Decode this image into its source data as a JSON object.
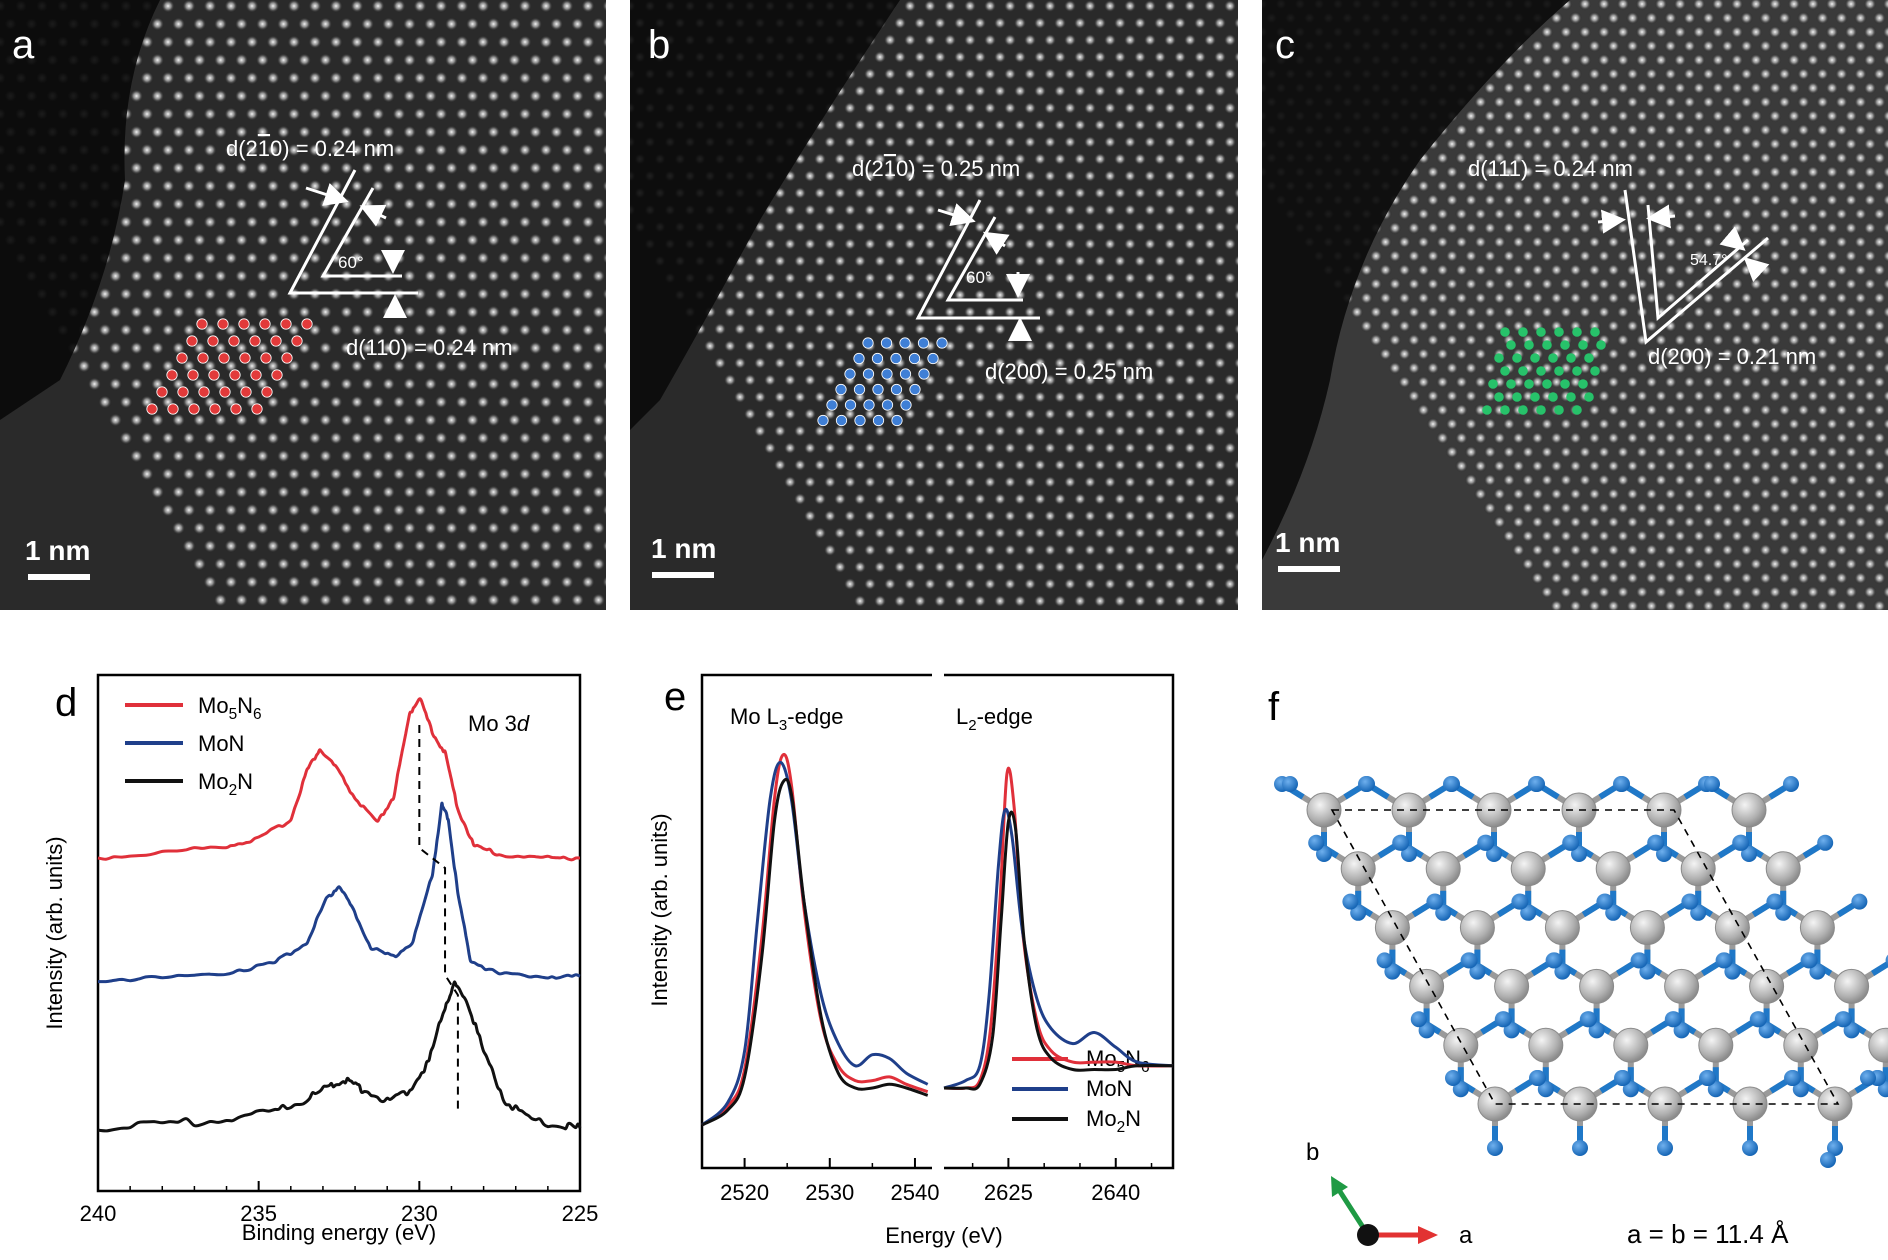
{
  "panels": {
    "a": {
      "letter": "a",
      "scale_label": "1 nm",
      "annotations": [
        {
          "prefix": "d(2",
          "bar": "1",
          "suffix": "0) = 0.24 nm"
        },
        {
          "text": "d(110) = 0.24 nm"
        }
      ],
      "angle": "60°",
      "dot_color": "#e23a3a"
    },
    "b": {
      "letter": "b",
      "scale_label": "1 nm",
      "annotations": [
        {
          "prefix": "d(2",
          "bar": "1",
          "suffix": "0) = 0.25 nm"
        },
        {
          "text": "d(200) = 0.25 nm"
        }
      ],
      "angle": "60°",
      "dot_color": "#3f7fd6"
    },
    "c": {
      "letter": "c",
      "scale_label": "1 nm",
      "annotations": [
        {
          "text": "d(111) = 0.24 nm"
        },
        {
          "text": "d(200) = 0.21 nm"
        }
      ],
      "angle": "54.7°",
      "dot_color": "#27c26a"
    },
    "f": {
      "letter": "f",
      "lattice_label": "a = b = 11.4 Å",
      "axis_a": "a",
      "axis_b": "b",
      "mo_color": "#b3b3b3",
      "n_color": "#1f78c8"
    }
  },
  "chart_data": [
    {
      "type": "line",
      "panel": "d",
      "title": "",
      "annotation": "Mo 3d",
      "xlabel": "Binding energy (eV)",
      "ylabel": "Intensity (arb. units)",
      "xlim": [
        240,
        225
      ],
      "x_reversed": true,
      "x_ticks": [
        240,
        235,
        230,
        225
      ],
      "legend_position": "top-left",
      "series": [
        {
          "name": "Mo5N6",
          "label_parts": [
            "Mo",
            "5",
            "N",
            "6"
          ],
          "color": "#e0303a",
          "offset": 2.0,
          "x": [
            240,
            238,
            236,
            235,
            234,
            233.5,
            233.1,
            232.6,
            232,
            231.3,
            230.8,
            230.3,
            230,
            229.6,
            229.2,
            228.8,
            228.3,
            227.5,
            226,
            225
          ],
          "y": [
            0.0,
            0.03,
            0.07,
            0.11,
            0.22,
            0.5,
            0.62,
            0.52,
            0.34,
            0.2,
            0.35,
            0.82,
            0.92,
            0.72,
            0.6,
            0.28,
            0.07,
            0.02,
            0.0,
            0.0
          ]
        },
        {
          "name": "MoN",
          "label_parts": [
            "MoN"
          ],
          "color": "#1f3f8a",
          "offset": 1.0,
          "x": [
            240,
            238,
            236,
            234.5,
            233.5,
            232.9,
            232.5,
            232.1,
            231.5,
            230.8,
            230.2,
            229.6,
            229.3,
            229.1,
            228.8,
            228.4,
            227.5,
            226,
            225
          ],
          "y": [
            0.0,
            0.01,
            0.04,
            0.09,
            0.2,
            0.42,
            0.5,
            0.38,
            0.17,
            0.12,
            0.2,
            0.55,
            0.92,
            0.85,
            0.45,
            0.1,
            0.03,
            0.02,
            0.02
          ]
        },
        {
          "name": "Mo2N",
          "label_parts": [
            "Mo",
            "2",
            "N"
          ],
          "color": "#111111",
          "offset": 0.0,
          "x": [
            240,
            238,
            236,
            234.5,
            233.5,
            232.8,
            232.3,
            231.8,
            231,
            230.3,
            229.7,
            229.2,
            228.9,
            228.5,
            228,
            227.3,
            226.5,
            225.5,
            225
          ],
          "y": [
            0.0,
            0.02,
            0.05,
            0.09,
            0.16,
            0.23,
            0.27,
            0.22,
            0.15,
            0.21,
            0.37,
            0.68,
            0.8,
            0.7,
            0.42,
            0.14,
            0.05,
            0.01,
            0.0
          ]
        }
      ],
      "shift_markers": [
        230.0,
        229.2,
        228.8
      ]
    },
    {
      "type": "line",
      "panel": "e",
      "title": "",
      "xlabel": "Energy (eV)",
      "ylabel": "Intensity (arb. units)",
      "subpanels": [
        {
          "label_parts": [
            "Mo L",
            "3",
            "-edge"
          ],
          "xlim": [
            2515,
            2542
          ],
          "x_ticks": [
            2520,
            2530,
            2540
          ]
        },
        {
          "label_parts": [
            "L",
            "2",
            "-edge"
          ],
          "xlim": [
            2616,
            2648
          ],
          "x_ticks": [
            2625,
            2640
          ]
        }
      ],
      "legend_position": "bottom-right",
      "series": [
        {
          "name": "Mo5N6",
          "label_parts": [
            "Mo",
            "5",
            "N",
            "6"
          ],
          "color": "#e0303a",
          "L3": {
            "x": [
              2515,
              2518,
              2520,
              2522,
              2523.5,
              2524.5,
              2525.5,
              2527,
              2529,
              2531,
              2533,
              2535,
              2537,
              2539,
              2541.5
            ],
            "y": [
              0.0,
              0.05,
              0.15,
              0.5,
              0.88,
              1.0,
              0.92,
              0.58,
              0.28,
              0.16,
              0.12,
              0.12,
              0.13,
              0.11,
              0.09
            ]
          },
          "L2": {
            "x": [
              2616,
              2619,
              2621,
              2622.5,
              2623.8,
              2624.8,
              2625.8,
              2627,
              2629,
              2631,
              2634,
              2637,
              2640,
              2643,
              2648
            ],
            "y": [
              0.1,
              0.1,
              0.12,
              0.26,
              0.6,
              0.95,
              0.86,
              0.52,
              0.28,
              0.2,
              0.17,
              0.17,
              0.17,
              0.16,
              0.16
            ]
          }
        },
        {
          "name": "MoN",
          "label_parts": [
            "MoN"
          ],
          "color": "#1f3f8a",
          "L3": {
            "x": [
              2515,
              2518,
              2520,
              2521.5,
              2523,
              2524.2,
              2525.5,
              2527,
              2529,
              2531,
              2533,
              2535,
              2537,
              2539,
              2541.5
            ],
            "y": [
              0.0,
              0.06,
              0.2,
              0.55,
              0.88,
              0.98,
              0.88,
              0.6,
              0.35,
              0.22,
              0.16,
              0.19,
              0.18,
              0.14,
              0.11
            ]
          },
          "L2": {
            "x": [
              2616,
              2619,
              2621,
              2622.3,
              2623.6,
              2624.5,
              2625.5,
              2627,
              2629,
              2631,
              2634,
              2637,
              2640,
              2643,
              2648
            ],
            "y": [
              0.1,
              0.12,
              0.16,
              0.35,
              0.7,
              0.85,
              0.78,
              0.52,
              0.34,
              0.26,
              0.22,
              0.25,
              0.21,
              0.17,
              0.16
            ]
          }
        },
        {
          "name": "Mo2N",
          "label_parts": [
            "Mo",
            "2",
            "N"
          ],
          "color": "#111111",
          "L3": {
            "x": [
              2515,
              2518,
              2520,
              2522,
              2523.5,
              2524.6,
              2525.6,
              2527,
              2529,
              2531,
              2533,
              2535,
              2537,
              2539,
              2541.5
            ],
            "y": [
              0.0,
              0.04,
              0.13,
              0.45,
              0.82,
              0.93,
              0.88,
              0.6,
              0.29,
              0.14,
              0.1,
              0.1,
              0.11,
              0.1,
              0.08
            ]
          },
          "L2": {
            "x": [
              2616,
              2619,
              2621,
              2622.8,
              2624,
              2625,
              2626,
              2627.2,
              2629,
              2631,
              2634,
              2637,
              2640,
              2643,
              2648
            ],
            "y": [
              0.1,
              0.1,
              0.11,
              0.24,
              0.56,
              0.82,
              0.8,
              0.5,
              0.26,
              0.18,
              0.15,
              0.15,
              0.15,
              0.16,
              0.16
            ]
          }
        }
      ]
    }
  ]
}
